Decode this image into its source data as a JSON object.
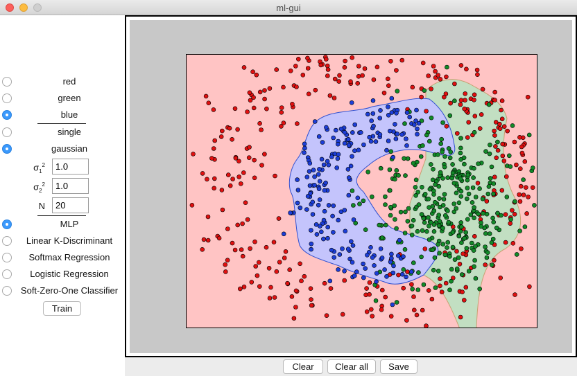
{
  "window": {
    "title": "ml-gui"
  },
  "sidebar": {
    "classes": [
      {
        "label": "red",
        "selected": false
      },
      {
        "label": "green",
        "selected": false
      },
      {
        "label": "blue",
        "selected": true
      }
    ],
    "distributions": [
      {
        "label": "single",
        "selected": false
      },
      {
        "label": "gaussian",
        "selected": true
      }
    ],
    "params": {
      "sigma1": {
        "label": "σ",
        "sub": "1",
        "sup": "2",
        "value": "1.0"
      },
      "sigma2": {
        "label": "σ",
        "sub": "2",
        "sup": "2",
        "value": "1.0"
      },
      "n": {
        "label": "N",
        "value": "20"
      }
    },
    "classifiers": [
      {
        "label": "MLP",
        "selected": true
      },
      {
        "label": "Linear K-Discriminant",
        "selected": false
      },
      {
        "label": "Softmax Regression",
        "selected": false
      },
      {
        "label": "Logistic Regression",
        "selected": false
      },
      {
        "label": "Soft-Zero-One Classifier",
        "selected": false
      }
    ],
    "train_label": "Train"
  },
  "bottom": {
    "clear_label": "Clear",
    "clear_all_label": "Clear all",
    "save_label": "Save"
  },
  "colors": {
    "red_region": "#ffc4c4",
    "green_region": "#c2dfc2",
    "blue_region": "#c4c4fc",
    "red_point": "#e01010",
    "green_point": "#128a28",
    "blue_point": "#1c3ed8",
    "boundary": "#c8a070",
    "blue_boundary": "#3050d0"
  }
}
